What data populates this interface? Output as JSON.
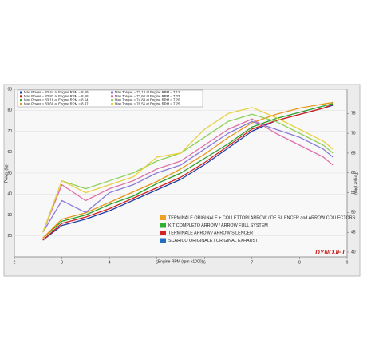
{
  "chart_data": {
    "type": "line",
    "x_label": "Engine RPM (rpm x1000)",
    "y_label": "Power (hp)",
    "y2_label": "Torque (Nm)",
    "logo": "DYNOJET",
    "x": [
      2.6,
      3,
      3.5,
      4,
      4.5,
      5,
      5.5,
      6,
      6.5,
      7,
      7.5,
      8,
      8.5,
      8.7
    ],
    "xlim": [
      2,
      9
    ],
    "xticks": [
      2,
      3,
      4,
      5,
      6,
      7,
      8,
      9
    ],
    "ylim": [
      10,
      90
    ],
    "yticks": [
      20,
      30,
      40,
      50,
      60,
      70,
      80,
      90
    ],
    "y2lim": [
      38.8,
      81.1
    ],
    "y2ticks": [
      40,
      45,
      50,
      55,
      60,
      65,
      70,
      75
    ],
    "series": [
      {
        "name": "Max Power = 82,44 at Engine RPM = 8,69",
        "color": "#1f3fa8",
        "axis": "y",
        "values": [
          18,
          25,
          28,
          32,
          37,
          42,
          47,
          54,
          62,
          70,
          75,
          78,
          81,
          82.4
        ]
      },
      {
        "name": "Max Power = 82,81 at Engine RPM = 8,68",
        "color": "#d42020",
        "axis": "y",
        "values": [
          18,
          26,
          29,
          33,
          38,
          43,
          48,
          55,
          63,
          71,
          75,
          78,
          81,
          82.8
        ]
      },
      {
        "name": "Max Power = 83,18 at Engine RPM = 8,64",
        "color": "#2aa02a",
        "axis": "y",
        "values": [
          19,
          27,
          30,
          35,
          39,
          45,
          50,
          57,
          64,
          72,
          76,
          79,
          82,
          83.2
        ]
      },
      {
        "name": "Max Power = 83,69 at Engine RPM = 8,47",
        "color": "#e8951a",
        "axis": "y",
        "values": [
          19,
          28,
          31,
          36,
          41,
          46,
          52,
          59,
          67,
          74,
          78,
          81,
          83,
          83.7
        ]
      },
      {
        "name": "Max Torque = 73,13 at Engine RPM = 7,12",
        "color": "#8a7ad8",
        "axis": "y2",
        "values": [
          45,
          53,
          50,
          55,
          57,
          60,
          62,
          66,
          70,
          73,
          71,
          69,
          66,
          64
        ]
      },
      {
        "name": "Max Torque = 73,60 at Engine RPM = 7,23",
        "color": "#e070a8",
        "axis": "y2",
        "values": [
          45,
          57,
          53,
          56,
          58,
          61,
          63,
          67,
          71,
          73.6,
          70,
          67,
          64,
          62
        ]
      },
      {
        "name": "Max Torque = 74,84 at Engine RPM = 7,20",
        "color": "#8fd05a",
        "axis": "y2",
        "values": [
          45,
          58,
          56,
          58,
          60,
          63,
          65,
          69,
          73,
          74.8,
          73,
          70,
          67,
          65
        ]
      },
      {
        "name": "Max Torque = 76,56 at Engine RPM = 7,25",
        "color": "#e8d040",
        "axis": "y2",
        "values": [
          45,
          58,
          55,
          57,
          59,
          64,
          65,
          71,
          75,
          76.5,
          74,
          71,
          68,
          66
        ]
      }
    ],
    "configurations": [
      {
        "label": "TERMINALE ORIGINALE + COLLETTORI ARROW / DE SILENCER and ARROW COLLECTORS",
        "color": "#f0a020"
      },
      {
        "label": "KIT COMPLETO ARROW / ARROW FULL SYSTEM",
        "color": "#30b030"
      },
      {
        "label": "TERMINALE ARROW / ARROW SILENCER",
        "color": "#d42020"
      },
      {
        "label": "SCARICO ORIGINALE / ORIGINAL EXHAUST",
        "color": "#1f6fc0"
      }
    ]
  }
}
